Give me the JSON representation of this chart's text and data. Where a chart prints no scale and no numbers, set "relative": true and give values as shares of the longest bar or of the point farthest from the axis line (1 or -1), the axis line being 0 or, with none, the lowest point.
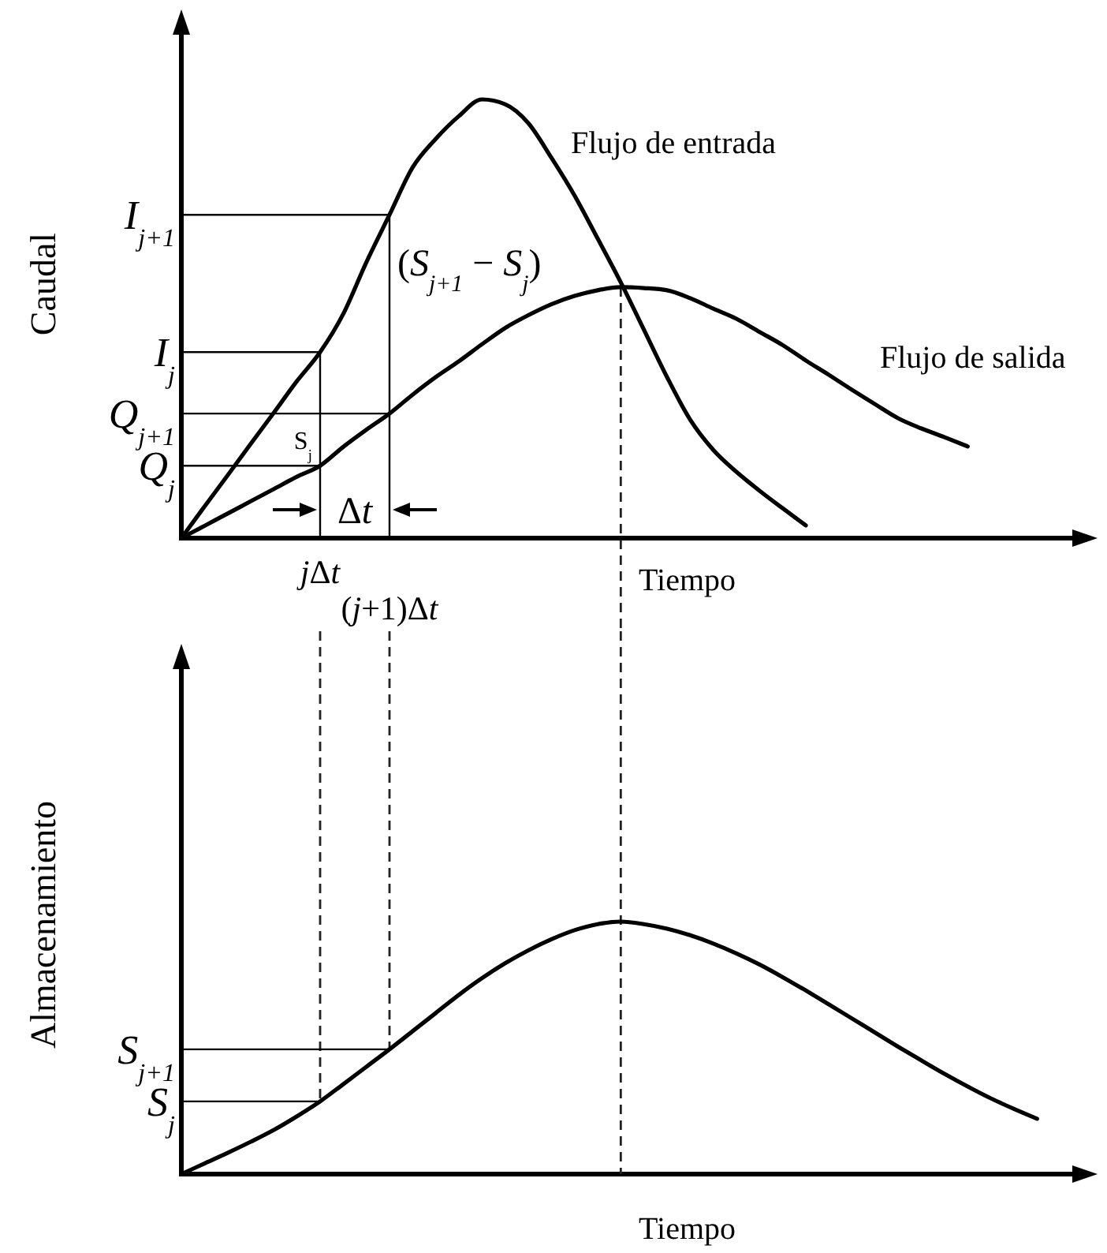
{
  "chart_data": [
    {
      "type": "line",
      "relative": true,
      "ylabel": "Caudal",
      "xlabel": "Tiempo",
      "tick_labels": "x",
      "categories": [
        null,
        null,
        null,
        null,
        null,
        null,
        "jΔt",
        null,
        null,
        "(j+1)Δt",
        null,
        null,
        null,
        null,
        null,
        null,
        null,
        null,
        null,
        null,
        null,
        null,
        null,
        null,
        null,
        null,
        null,
        null,
        null,
        null,
        null,
        null,
        null,
        null,
        null,
        null,
        null,
        null,
        null,
        null
      ],
      "series": [
        {
          "name": "Flujo de entrada",
          "color": "#000000",
          "values": [
            0,
            0.072,
            0.143,
            0.215,
            0.286,
            0.358,
            0.424,
            0.511,
            0.629,
            0.737,
            0.845,
            0.91,
            0.962,
            1,
            0.989,
            0.946,
            0.867,
            0.781,
            0.683,
            0.583,
            0.475,
            0.367,
            0.27,
            0.201,
            0.151,
            0.108,
            0.068,
            0.029,
            null,
            null,
            null,
            null,
            null,
            null,
            null,
            null,
            null,
            null,
            null,
            null
          ]
        },
        {
          "name": "Flujo de salida",
          "color": "#000000",
          "values": [
            0,
            0.028,
            0.056,
            0.084,
            0.112,
            0.14,
            0.165,
            0.208,
            0.247,
            0.284,
            0.327,
            0.367,
            0.403,
            0.442,
            0.479,
            0.508,
            0.533,
            0.552,
            0.565,
            0.572,
            0.57,
            0.565,
            0.547,
            0.523,
            0.5,
            0.47,
            0.44,
            0.405,
            0.372,
            0.338,
            0.305,
            0.273,
            0.25,
            0.23,
            0.209,
            null,
            null,
            null,
            null,
            null
          ]
        }
      ],
      "annotations": [
        "I$_{j+1}$",
        "I$_{j}$",
        "Q$_{j+1}$",
        "Q$_{j}$",
        "S$_{j}$",
        "(S$_{j+1}$ − S$_{j}$)",
        "Δt"
      ]
    },
    {
      "type": "line",
      "relative": true,
      "ylabel": "Almacenamiento",
      "xlabel": "Tiempo",
      "grid": "x",
      "categories": [
        null,
        null,
        null,
        null,
        null,
        null,
        null,
        null,
        null,
        null,
        null,
        null,
        null,
        null,
        null,
        null,
        null,
        null,
        null,
        null,
        null,
        null,
        null,
        null,
        null,
        null,
        null,
        null,
        null,
        null,
        null,
        null,
        null,
        null,
        null,
        null,
        null,
        null,
        null,
        null
      ],
      "series": [
        {
          "color": "#000000",
          "values": [
            0,
            0.042,
            0.084,
            0.128,
            0.175,
            0.229,
            0.288,
            0.356,
            0.425,
            0.494,
            0.566,
            0.638,
            0.71,
            0.776,
            0.835,
            0.886,
            0.93,
            0.966,
            0.99,
            1,
            0.99,
            0.972,
            0.946,
            0.913,
            0.874,
            0.83,
            0.78,
            0.727,
            0.672,
            0.616,
            0.56,
            0.504,
            0.45,
            0.397,
            0.347,
            0.3,
            0.258,
            0.219,
            null,
            null
          ]
        }
      ],
      "annotations": [
        "S$_{j+1}$",
        "S$_{j}$"
      ]
    }
  ]
}
